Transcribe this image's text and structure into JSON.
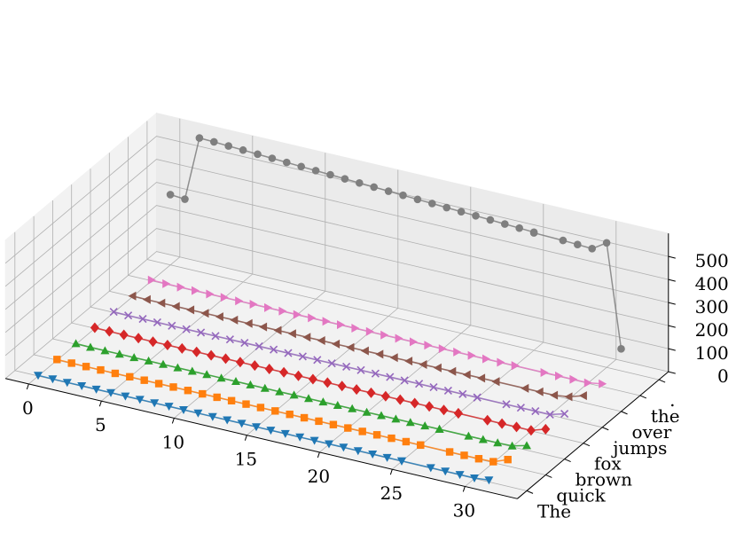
{
  "chart_data": {
    "type": "line",
    "subtype": "3d-line",
    "title": "",
    "xlabel": "",
    "ylabel": "",
    "zlabel": "",
    "grid": true,
    "xlim": [
      -1.6,
      33.6
    ],
    "zlim": [
      0,
      600
    ],
    "x_ticks": [
      "0",
      "5",
      "10",
      "15",
      "20",
      "25",
      "30"
    ],
    "y_ticks": [
      "The",
      "quick",
      "brown",
      "fox",
      "jumps",
      "over",
      "the",
      "."
    ],
    "z_ticks": [
      "0",
      "100",
      "200",
      "300",
      "400",
      "500"
    ],
    "x": [
      0,
      1,
      2,
      3,
      4,
      5,
      6,
      7,
      8,
      9,
      10,
      11,
      12,
      13,
      14,
      15,
      16,
      17,
      18,
      19,
      20,
      21,
      22,
      23,
      24,
      25,
      25,
      27,
      28,
      29,
      30,
      31
    ],
    "series": [
      {
        "y_label": ".",
        "color": "#1f77b4",
        "marker": "triangle-down",
        "values": [
          3,
          2,
          2,
          2,
          2,
          2,
          2,
          2,
          2,
          2,
          2,
          2,
          2,
          2,
          2,
          2,
          2,
          2,
          2,
          2,
          2,
          2,
          2,
          2,
          2,
          2,
          2,
          2,
          2,
          2,
          2,
          8
        ]
      },
      {
        "y_label": "the",
        "color": "#ff7f0e",
        "marker": "square",
        "values": [
          3,
          2,
          2,
          2,
          2,
          2,
          2,
          2,
          2,
          2,
          2,
          2,
          2,
          2,
          2,
          2,
          2,
          2,
          2,
          2,
          2,
          2,
          2,
          2,
          2,
          2,
          2,
          2,
          2,
          2,
          4,
          28
        ]
      },
      {
        "y_label": "over",
        "color": "#2ca02c",
        "marker": "triangle-up",
        "values": [
          3,
          2,
          2,
          2,
          2,
          2,
          2,
          2,
          2,
          2,
          2,
          2,
          2,
          2,
          2,
          2,
          2,
          2,
          2,
          2,
          2,
          2,
          2,
          2,
          2,
          2,
          2,
          2,
          2,
          2,
          4,
          20
        ]
      },
      {
        "y_label": "jumps",
        "color": "#d62728",
        "marker": "diamond",
        "values": [
          3,
          2,
          2,
          2,
          2,
          2,
          2,
          2,
          2,
          2,
          2,
          2,
          2,
          2,
          2,
          2,
          2,
          2,
          2,
          2,
          2,
          2,
          2,
          2,
          2,
          2,
          2,
          2,
          2,
          2,
          2,
          22
        ]
      },
      {
        "y_label": "fox",
        "color": "#9467bd",
        "marker": "x",
        "values": [
          3,
          2,
          2,
          2,
          2,
          2,
          2,
          2,
          2,
          2,
          2,
          2,
          2,
          2,
          2,
          2,
          2,
          2,
          2,
          2,
          2,
          2,
          2,
          2,
          2,
          2,
          2,
          2,
          2,
          2,
          2,
          20
        ]
      },
      {
        "y_label": "brown",
        "color": "#8c564b",
        "marker": "triangle-left",
        "values": [
          3,
          2,
          2,
          2,
          2,
          2,
          2,
          2,
          2,
          2,
          2,
          2,
          2,
          2,
          2,
          2,
          2,
          2,
          2,
          2,
          2,
          2,
          2,
          2,
          2,
          2,
          2,
          2,
          2,
          2,
          10,
          30
        ]
      },
      {
        "y_label": "quick",
        "color": "#e377c2",
        "marker": "triangle-right",
        "values": [
          3,
          2,
          2,
          2,
          2,
          2,
          2,
          2,
          2,
          2,
          2,
          2,
          2,
          2,
          2,
          2,
          2,
          2,
          2,
          2,
          2,
          2,
          2,
          2,
          2,
          2,
          2,
          2,
          2,
          2,
          2,
          12
        ]
      },
      {
        "y_label": "The",
        "color": "#7f7f7f",
        "marker": "circle",
        "values": [
          305,
          300,
          580,
          578,
          575,
          572,
          569,
          566,
          563,
          560,
          557,
          554,
          551,
          548,
          545,
          542,
          539,
          536,
          533,
          530,
          527,
          524,
          521,
          518,
          515,
          512,
          509,
          506,
          503,
          500,
          540,
          95
        ]
      }
    ]
  }
}
